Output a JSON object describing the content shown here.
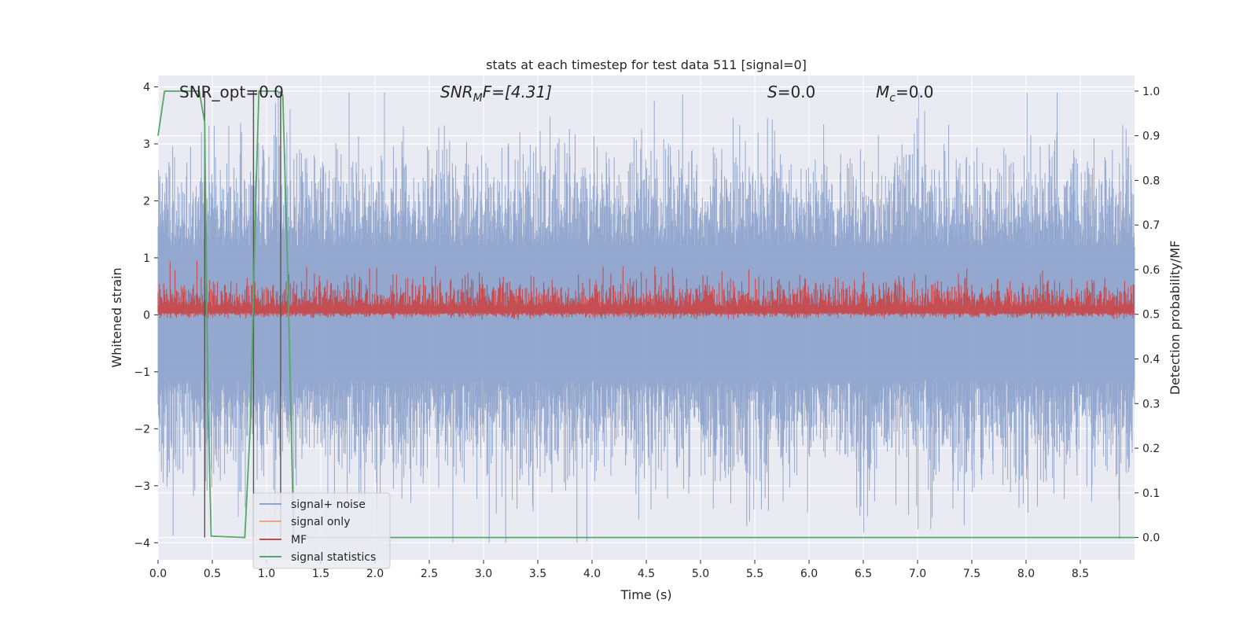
{
  "chart_data": {
    "type": "line",
    "title": "stats at each timestep for test data 511 [signal=0]",
    "xlabel": "Time (s)",
    "ylabel": "Whitened strain",
    "ylabel_right": "Detection probability/MF",
    "xlim": [
      0.0,
      9.0
    ],
    "ylim": [
      -4.3,
      4.2
    ],
    "ylim_right": [
      -0.05,
      1.035
    ],
    "x_ticks": [
      "0.0",
      "0.5",
      "1.0",
      "1.5",
      "2.0",
      "2.5",
      "3.0",
      "3.5",
      "4.0",
      "4.5",
      "5.0",
      "5.5",
      "6.0",
      "6.5",
      "7.0",
      "7.5",
      "8.0",
      "8.5"
    ],
    "y_ticks": [
      "−4",
      "−3",
      "−2",
      "−1",
      "0",
      "1",
      "2",
      "3",
      "4"
    ],
    "y_ticks_right": [
      "0.0",
      "0.1",
      "0.2",
      "0.3",
      "0.4",
      "0.5",
      "0.6",
      "0.7",
      "0.8",
      "0.9",
      "1.0"
    ],
    "grid": true,
    "legend_position": "lower-left",
    "annotations": {
      "snr_opt": "SNR_opt=0.0",
      "snr_mf_main": "SNR",
      "snr_mf_sub": "M",
      "snr_mf_tail": "F=[4.31]",
      "s_main": "S",
      "s_tail": "=0.0",
      "mc_main": "M",
      "mc_sub": "c",
      "mc_tail": "=0.0"
    },
    "series": [
      {
        "name": "signal+ noise",
        "color": "#8fa4cc",
        "axis": "left",
        "kind": "noise",
        "amplitude_range": [
          -4.0,
          3.9
        ]
      },
      {
        "name": "signal only",
        "color": "#e8a58c",
        "axis": "left",
        "kind": "flat",
        "value": 0.0
      },
      {
        "name": "MF",
        "color": "#c44e52",
        "axis": "right",
        "kind": "noise",
        "amplitude_range": [
          0.5,
          0.62
        ]
      },
      {
        "name": "signal statistics",
        "color": "#55a868",
        "axis": "right",
        "kind": "line",
        "x": [
          0.0,
          0.06,
          0.38,
          0.43,
          0.46,
          0.49,
          0.8,
          0.85,
          0.9,
          0.93,
          0.96,
          1.1,
          1.15,
          1.2,
          1.25,
          1.5,
          1.6,
          9.0
        ],
        "y": [
          0.9,
          1.0,
          1.0,
          0.93,
          0.3,
          0.003,
          0.0,
          0.25,
          0.75,
          1.0,
          1.0,
          1.0,
          0.99,
          0.55,
          0.0,
          0.0,
          0.0,
          0.0
        ]
      }
    ],
    "vertical_markers": [
      0.43,
      0.88,
      1.13
    ]
  }
}
